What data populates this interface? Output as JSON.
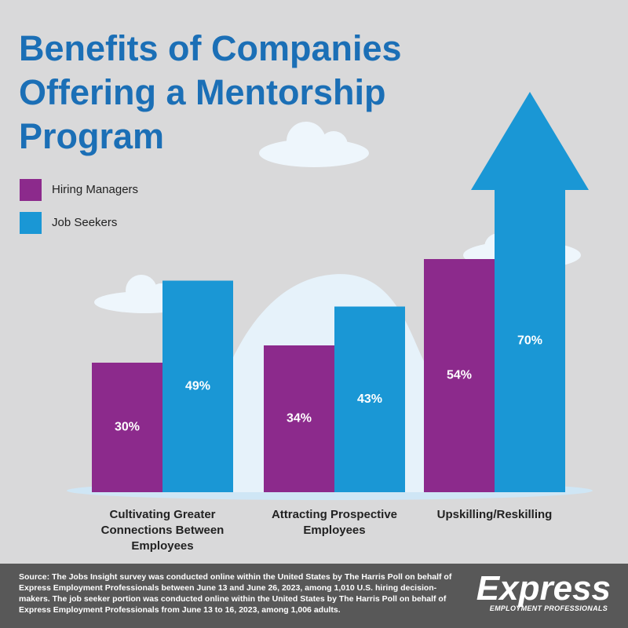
{
  "chart_data": {
    "type": "bar",
    "title": "Benefits of Companies Offering a Mentorship Program",
    "categories": [
      "Cultivating Greater Connections Between Employees",
      "Attracting Prospective Employees",
      "Upskilling/Reskilling"
    ],
    "series": [
      {
        "name": "Hiring Managers",
        "color": "#8c2a8c",
        "values": [
          30,
          34,
          54
        ],
        "value_labels": [
          "30%",
          "34%",
          "54%"
        ]
      },
      {
        "name": "Job Seekers",
        "color": "#1a97d5",
        "values": [
          49,
          43,
          70
        ],
        "value_labels": [
          "49%",
          "43%",
          "70%"
        ]
      }
    ],
    "source": "Source: The Jobs Insight survey was conducted online within the United States by The Harris Poll on behalf of Express Employment Professionals between June 13 and June 26, 2023, among 1,010 U.S. hiring decision-makers. The job seeker portion was conducted online within the United States by The Harris Poll on behalf of Express Employment Professionals from June 13 to 16, 2023, among 1,006 adults.",
    "brand": "Express",
    "brand_subtitle": "EMPLOYMENT PROFESSIONALS"
  }
}
